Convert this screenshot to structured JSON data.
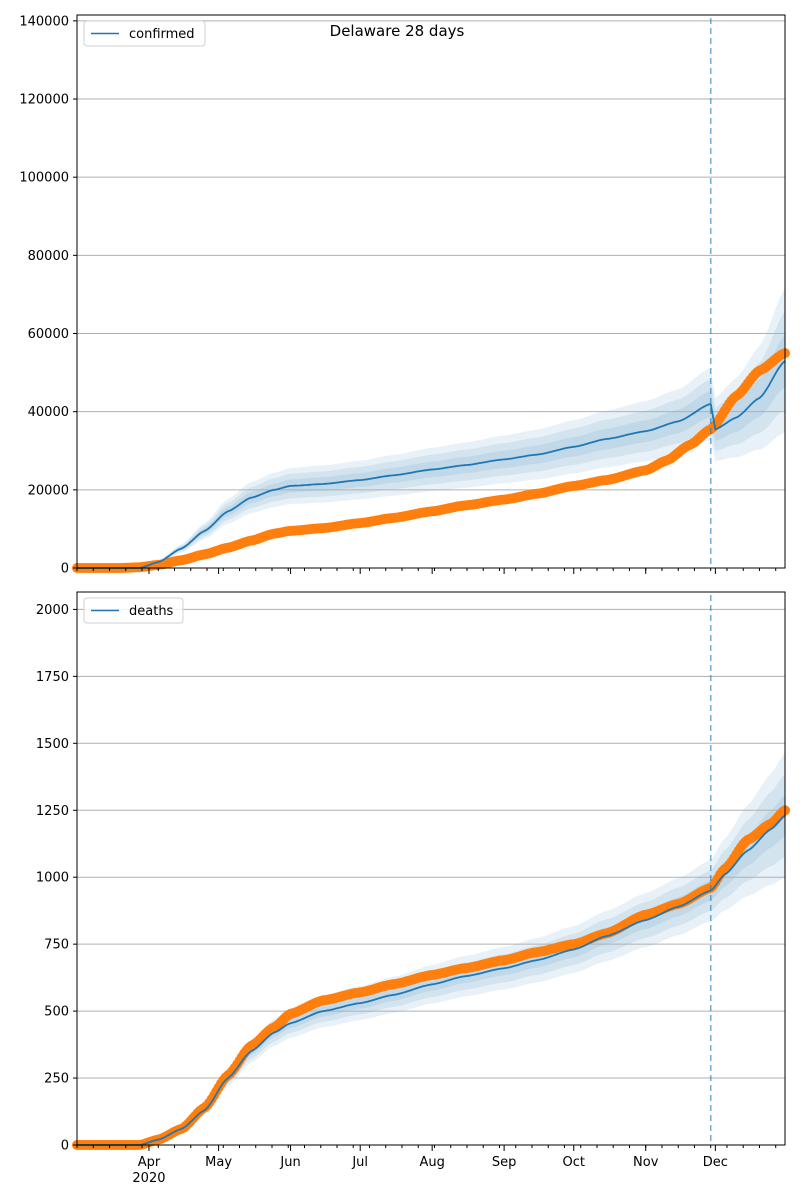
{
  "title": "Delaware 28 days",
  "colors": {
    "model": "#1f77b4",
    "observed": "#ff7f0e",
    "band": "#1f77b4",
    "grid": "#b0b0b0",
    "vline": "#1f77b4"
  },
  "chart_data": [
    {
      "type": "line",
      "panel": "top",
      "legend": {
        "label": "confirmed",
        "placement": "top-left"
      },
      "xlabel": "",
      "ylabel": "",
      "x_start": "2020-03-01",
      "x_end": "2020-12-31",
      "forecast_start": "2020-11-29",
      "ylim": [
        0,
        141500
      ],
      "yticks": [
        0,
        20000,
        40000,
        60000,
        80000,
        100000,
        120000,
        140000
      ],
      "ytick_labels": [
        "0",
        "20000",
        "40000",
        "60000",
        "80000",
        "100000",
        "120000",
        "140000"
      ],
      "grid": "horizontal",
      "model_series": {
        "name": "confirmed",
        "x": [
          "2020-03-01",
          "2020-03-15",
          "2020-03-28",
          "2020-04-05",
          "2020-04-15",
          "2020-04-25",
          "2020-05-05",
          "2020-05-15",
          "2020-05-25",
          "2020-06-01",
          "2020-06-15",
          "2020-07-01",
          "2020-07-15",
          "2020-08-01",
          "2020-08-15",
          "2020-09-01",
          "2020-09-15",
          "2020-10-01",
          "2020-10-15",
          "2020-11-01",
          "2020-11-15",
          "2020-11-29",
          "2020-12-01",
          "2020-12-10",
          "2020-12-20",
          "2020-12-31"
        ],
        "y": [
          0,
          0,
          0,
          1500,
          5000,
          9500,
          14500,
          18000,
          20000,
          21000,
          21500,
          22500,
          23700,
          25200,
          26300,
          27800,
          29000,
          31000,
          33000,
          35000,
          37500,
          42000,
          35500,
          38500,
          43500,
          53000
        ],
        "band_width_pct": [
          0.08,
          0.15,
          0.22
        ]
      },
      "observed_series": {
        "name": "",
        "x": [
          "2020-03-01",
          "2020-03-20",
          "2020-03-28",
          "2020-04-05",
          "2020-04-15",
          "2020-04-25",
          "2020-05-05",
          "2020-05-15",
          "2020-05-25",
          "2020-06-01",
          "2020-06-15",
          "2020-07-01",
          "2020-07-15",
          "2020-08-01",
          "2020-08-15",
          "2020-09-01",
          "2020-09-15",
          "2020-10-01",
          "2020-10-15",
          "2020-11-01",
          "2020-11-10",
          "2020-11-20",
          "2020-11-29",
          "2020-12-10",
          "2020-12-20",
          "2020-12-31"
        ],
        "y": [
          0,
          0,
          200,
          800,
          2000,
          3500,
          5200,
          7000,
          8800,
          9500,
          10200,
          11500,
          12800,
          14500,
          16000,
          17500,
          19000,
          21000,
          22500,
          25000,
          27500,
          31500,
          35500,
          44000,
          50500,
          55000
        ]
      }
    },
    {
      "type": "line",
      "panel": "bottom",
      "legend": {
        "label": "deaths",
        "placement": "top-left"
      },
      "xlabel": "",
      "ylabel": "",
      "x_start": "2020-03-01",
      "x_end": "2020-12-31",
      "forecast_start": "2020-11-29",
      "ylim": [
        0,
        2065
      ],
      "yticks": [
        0,
        250,
        500,
        750,
        1000,
        1250,
        1500,
        1750,
        2000
      ],
      "ytick_labels": [
        "0",
        "250",
        "500",
        "750",
        "1000",
        "1250",
        "1500",
        "1750",
        "2000"
      ],
      "xticks": [
        "2020-04-01",
        "2020-05-01",
        "2020-06-01",
        "2020-07-01",
        "2020-08-01",
        "2020-09-01",
        "2020-10-01",
        "2020-11-01",
        "2020-12-01"
      ],
      "xtick_labels": [
        "Apr",
        "May",
        "Jun",
        "Jul",
        "Aug",
        "Sep",
        "Oct",
        "Nov",
        "Dec"
      ],
      "xtick_year": {
        "label": "2020",
        "at": "2020-04-01"
      },
      "grid": "horizontal",
      "model_series": {
        "name": "deaths",
        "x": [
          "2020-03-01",
          "2020-03-28",
          "2020-04-05",
          "2020-04-15",
          "2020-04-25",
          "2020-05-05",
          "2020-05-15",
          "2020-05-25",
          "2020-06-01",
          "2020-06-15",
          "2020-07-01",
          "2020-07-15",
          "2020-08-01",
          "2020-08-15",
          "2020-09-01",
          "2020-09-15",
          "2020-10-01",
          "2020-10-15",
          "2020-11-01",
          "2020-11-15",
          "2020-11-29",
          "2020-12-05",
          "2020-12-15",
          "2020-12-25",
          "2020-12-31"
        ],
        "y": [
          0,
          0,
          20,
          60,
          130,
          250,
          350,
          420,
          455,
          500,
          530,
          560,
          600,
          630,
          660,
          690,
          730,
          780,
          840,
          890,
          950,
          1010,
          1100,
          1180,
          1230
        ],
        "band_width_pct": [
          0.04,
          0.08,
          0.12
        ]
      },
      "observed_series": {
        "name": "",
        "x": [
          "2020-03-01",
          "2020-03-28",
          "2020-04-05",
          "2020-04-15",
          "2020-04-25",
          "2020-05-05",
          "2020-05-15",
          "2020-05-25",
          "2020-06-01",
          "2020-06-15",
          "2020-07-01",
          "2020-07-15",
          "2020-08-01",
          "2020-08-15",
          "2020-09-01",
          "2020-09-15",
          "2020-10-01",
          "2020-10-15",
          "2020-11-01",
          "2020-11-15",
          "2020-11-29",
          "2020-12-05",
          "2020-12-15",
          "2020-12-25",
          "2020-12-31"
        ],
        "y": [
          0,
          0,
          20,
          60,
          140,
          260,
          370,
          440,
          490,
          540,
          570,
          600,
          635,
          660,
          690,
          720,
          750,
          790,
          860,
          900,
          960,
          1030,
          1140,
          1200,
          1250
        ]
      }
    }
  ]
}
